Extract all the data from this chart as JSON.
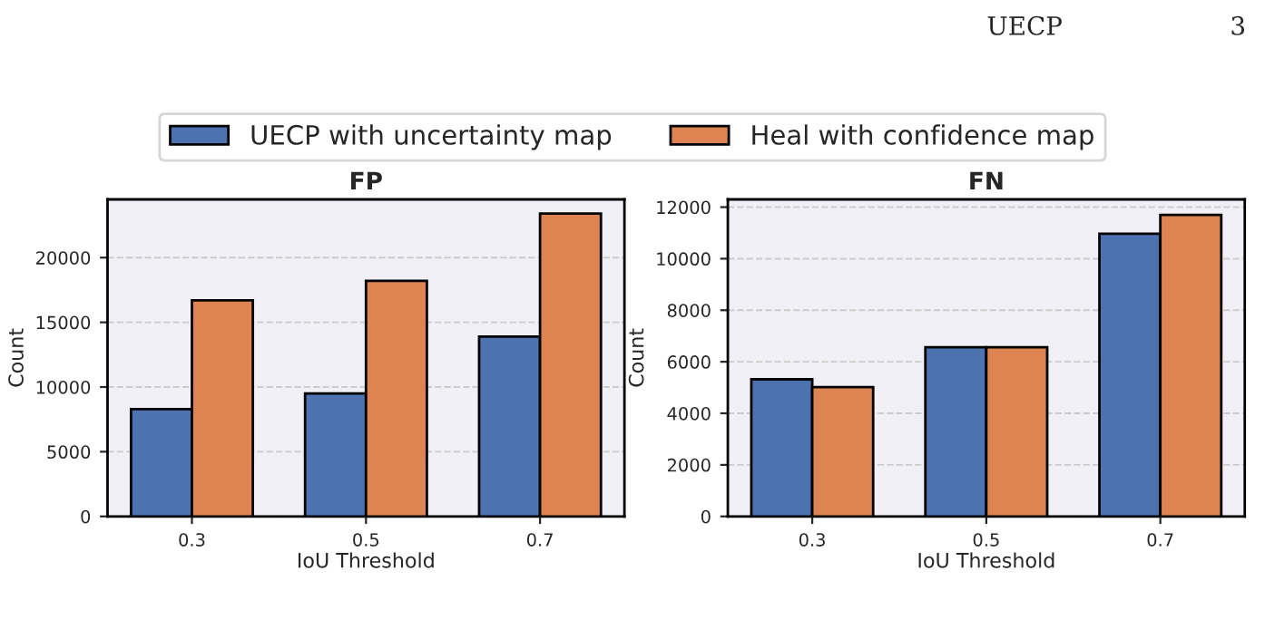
{
  "chart_data": [
    {
      "type": "bar",
      "title": "FP",
      "xlabel": "IoU Threshold",
      "ylabel": "Count",
      "categories": [
        "0.3",
        "0.5",
        "0.7"
      ],
      "series": [
        {
          "name": "UECP with uncertainty map",
          "color": "#4c72b0",
          "values": [
            8300,
            9500,
            13900
          ]
        },
        {
          "name": "Heal with confidence map",
          "color": "#dd8452",
          "values": [
            16700,
            18200,
            23400
          ]
        }
      ],
      "ylim": [
        0,
        24500
      ],
      "yticks": [
        0,
        5000,
        10000,
        15000,
        20000
      ],
      "grid": "y",
      "legend": "top",
      "annotations": [
        "UECP",
        "3"
      ]
    },
    {
      "type": "bar",
      "title": "FN",
      "xlabel": "IoU Threshold",
      "ylabel": "Count",
      "categories": [
        "0.3",
        "0.5",
        "0.7"
      ],
      "series": [
        {
          "name": "UECP with uncertainty map",
          "color": "#4c72b0",
          "values": [
            5320,
            6560,
            10970
          ]
        },
        {
          "name": "Heal with confidence map",
          "color": "#dd8452",
          "values": [
            5020,
            6560,
            11700
          ]
        }
      ],
      "ylim": [
        0,
        12300
      ],
      "yticks": [
        0,
        2000,
        4000,
        6000,
        8000,
        10000,
        12000
      ],
      "grid": "y"
    }
  ]
}
